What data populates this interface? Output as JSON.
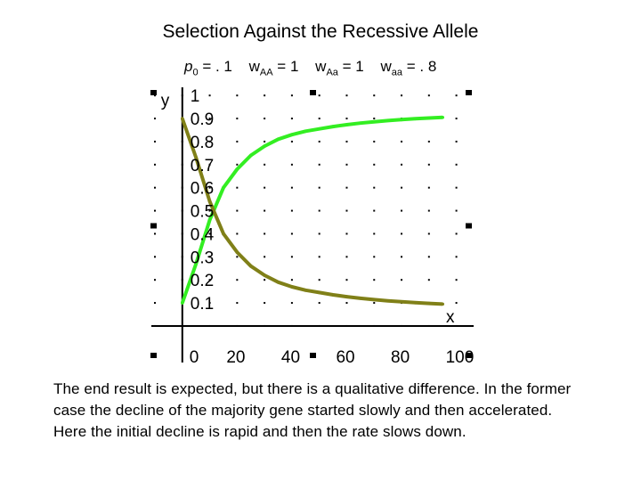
{
  "title": "Selection Against the Recessive Allele",
  "params": {
    "p0_label": "p",
    "p0_sub": "0",
    "p0_value": " = . 1",
    "wAA_label": "w",
    "wAA_sub": "AA",
    "wAA_value": " = 1",
    "wAa_label": "w",
    "wAa_sub": "Aa",
    "wAa_value": " = 1",
    "waa_label": "w",
    "waa_sub": "aa",
    "waa_value": " = . 8"
  },
  "body_text": "The end result is expected, but there is a qualitative difference.  In the former case the decline of the majority gene started slowly and then accelerated.  Here the initial decline is rapid and then the rate slows down.",
  "colors": {
    "dominant_series": "#33ee22",
    "recessive_series": "#808018",
    "axis": "#000000",
    "grid_dots": "#000000"
  },
  "chart_data": {
    "type": "line",
    "title": "",
    "xlabel": "x",
    "ylabel": "y",
    "xlim": [
      -10,
      105
    ],
    "ylim": [
      -0.12,
      1.02
    ],
    "x_ticks": [
      {
        "value": 0,
        "label": "0"
      },
      {
        "value": 20,
        "label": "20"
      },
      {
        "value": 40,
        "label": "40"
      },
      {
        "value": 60,
        "label": "60"
      },
      {
        "value": 80,
        "label": "80"
      },
      {
        "value": 100,
        "label": "100"
      }
    ],
    "y_ticks": [
      {
        "value": 0.1,
        "label": "0.1"
      },
      {
        "value": 0.2,
        "label": "0.2"
      },
      {
        "value": 0.3,
        "label": "0.3"
      },
      {
        "value": 0.4,
        "label": "0.4"
      },
      {
        "value": 0.5,
        "label": "0.5"
      },
      {
        "value": 0.6,
        "label": "0.6"
      },
      {
        "value": 0.7,
        "label": "0.7"
      },
      {
        "value": 0.8,
        "label": "0.8"
      },
      {
        "value": 0.9,
        "label": "0.9"
      },
      {
        "value": 1,
        "label": "1"
      }
    ],
    "grid": "dots",
    "x": [
      0,
      5,
      10,
      15,
      20,
      25,
      30,
      35,
      40,
      45,
      50,
      55,
      60,
      65,
      70,
      75,
      80,
      85,
      90,
      95
    ],
    "series": [
      {
        "values": [
          0.1,
          0.27,
          0.46,
          0.6,
          0.68,
          0.74,
          0.78,
          0.81,
          0.83,
          0.845,
          0.855,
          0.865,
          0.873,
          0.88,
          0.886,
          0.891,
          0.895,
          0.899,
          0.902,
          0.905
        ]
      },
      {
        "values": [
          0.9,
          0.73,
          0.54,
          0.4,
          0.32,
          0.26,
          0.22,
          0.19,
          0.17,
          0.155,
          0.145,
          0.135,
          0.127,
          0.12,
          0.114,
          0.109,
          0.105,
          0.101,
          0.098,
          0.095
        ]
      }
    ]
  }
}
